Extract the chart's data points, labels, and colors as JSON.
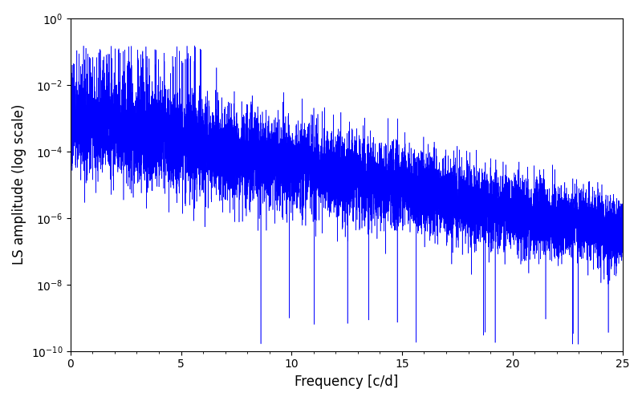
{
  "xlabel": "Frequency [c/d]",
  "ylabel": "LS amplitude (log scale)",
  "line_color": "#0000ff",
  "xlim": [
    0,
    25
  ],
  "ylim": [
    1e-10,
    1.0
  ],
  "freq_max": 25,
  "n_points": 15000,
  "seed": 7,
  "figsize": [
    8.0,
    5.0
  ],
  "dpi": 100,
  "background_color": "#ffffff"
}
